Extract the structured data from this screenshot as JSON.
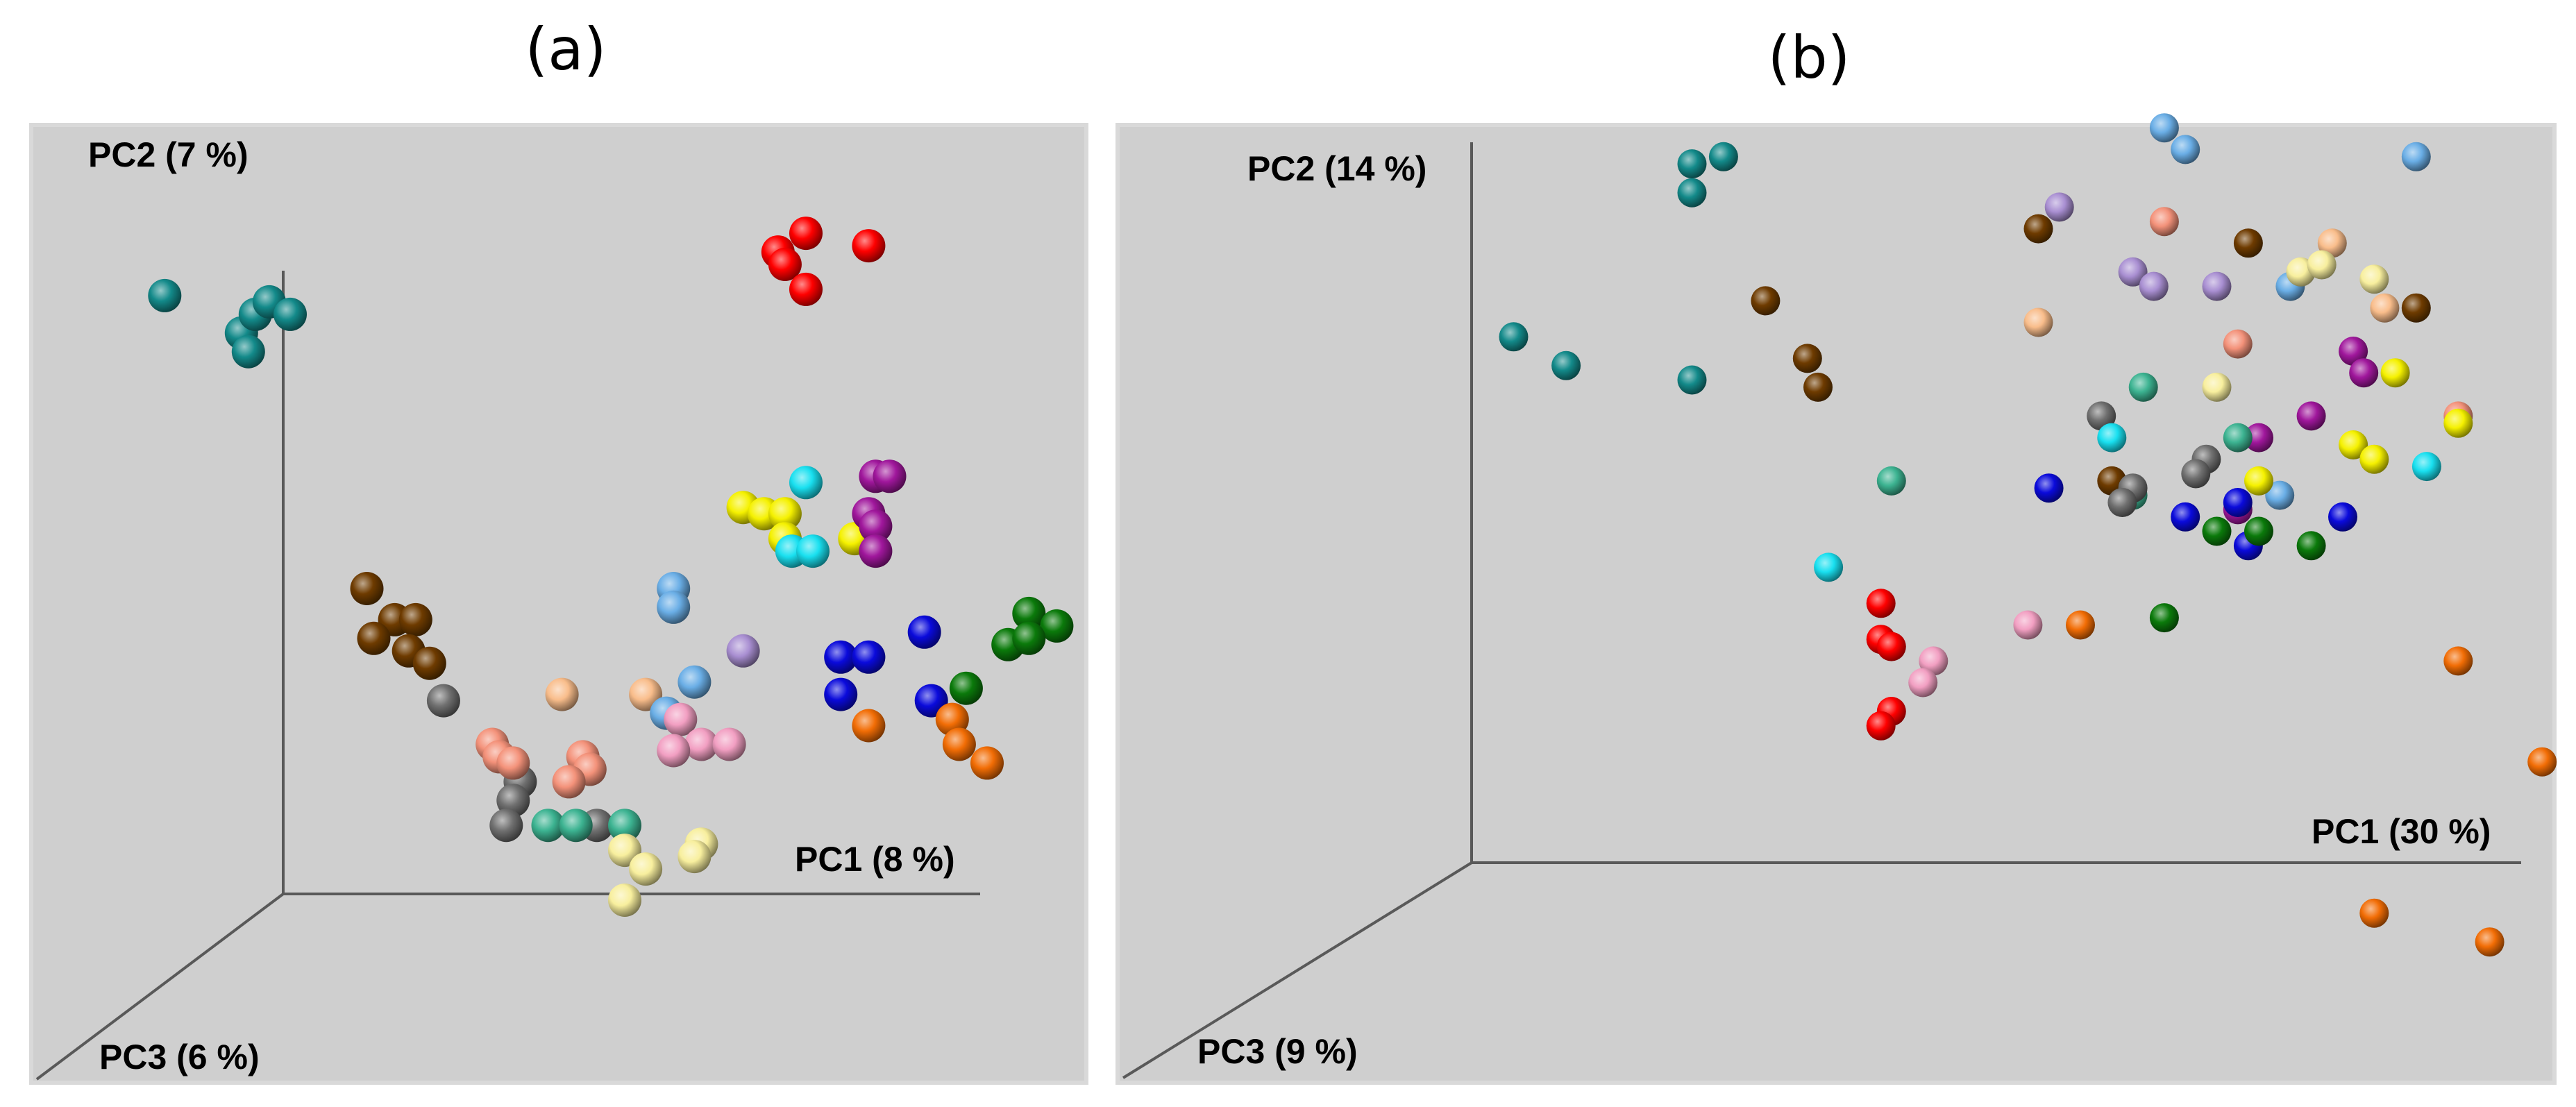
{
  "chart_data": [
    {
      "type": "scatter",
      "panel_label": "(a)",
      "view": "3d",
      "axes": {
        "x": "PC1 (8 %)",
        "y": "PC2 (7 %)",
        "z": "PC3 (6 %)"
      },
      "grid": false,
      "note": "3D PCoA scatter; points given as projected coordinates on the printed axes (0-1 scale, origin at axes corner)",
      "points": [
        {
          "c": "teal",
          "x": -0.17,
          "y": 0.96
        },
        {
          "c": "teal",
          "x": -0.06,
          "y": 0.9
        },
        {
          "c": "teal",
          "x": -0.04,
          "y": 0.93
        },
        {
          "c": "teal",
          "x": -0.02,
          "y": 0.95
        },
        {
          "c": "teal",
          "x": 0.01,
          "y": 0.93
        },
        {
          "c": "teal",
          "x": -0.05,
          "y": 0.87
        },
        {
          "c": "red",
          "x": 0.71,
          "y": 1.03
        },
        {
          "c": "red",
          "x": 0.75,
          "y": 1.06
        },
        {
          "c": "red",
          "x": 0.84,
          "y": 1.04
        },
        {
          "c": "red",
          "x": 0.72,
          "y": 1.01
        },
        {
          "c": "red",
          "x": 0.75,
          "y": 0.97
        },
        {
          "c": "brown",
          "x": 0.12,
          "y": 0.49
        },
        {
          "c": "brown",
          "x": 0.16,
          "y": 0.44
        },
        {
          "c": "brown",
          "x": 0.19,
          "y": 0.44
        },
        {
          "c": "brown",
          "x": 0.13,
          "y": 0.41
        },
        {
          "c": "brown",
          "x": 0.18,
          "y": 0.39
        },
        {
          "c": "brown",
          "x": 0.21,
          "y": 0.37
        },
        {
          "c": "gray",
          "x": 0.23,
          "y": 0.31
        },
        {
          "c": "gray",
          "x": 0.34,
          "y": 0.18
        },
        {
          "c": "gray",
          "x": 0.33,
          "y": 0.15
        },
        {
          "c": "gray",
          "x": 0.32,
          "y": 0.11
        },
        {
          "c": "gray",
          "x": 0.45,
          "y": 0.11
        },
        {
          "c": "salmon",
          "x": 0.3,
          "y": 0.24
        },
        {
          "c": "salmon",
          "x": 0.31,
          "y": 0.22
        },
        {
          "c": "salmon",
          "x": 0.33,
          "y": 0.21
        },
        {
          "c": "salmon",
          "x": 0.43,
          "y": 0.22
        },
        {
          "c": "salmon",
          "x": 0.44,
          "y": 0.2
        },
        {
          "c": "salmon",
          "x": 0.41,
          "y": 0.18
        },
        {
          "c": "peach",
          "x": 0.4,
          "y": 0.32
        },
        {
          "c": "peach",
          "x": 0.52,
          "y": 0.32
        },
        {
          "c": "seagreen",
          "x": 0.38,
          "y": 0.11
        },
        {
          "c": "seagreen",
          "x": 0.42,
          "y": 0.11
        },
        {
          "c": "seagreen",
          "x": 0.49,
          "y": 0.11
        },
        {
          "c": "lightyellow",
          "x": 0.49,
          "y": 0.07
        },
        {
          "c": "lightyellow",
          "x": 0.52,
          "y": 0.04
        },
        {
          "c": "lightyellow",
          "x": 0.6,
          "y": 0.08
        },
        {
          "c": "lightyellow",
          "x": 0.59,
          "y": 0.06
        },
        {
          "c": "lightyellow",
          "x": 0.49,
          "y": -0.01
        },
        {
          "c": "skyblue",
          "x": 0.56,
          "y": 0.49
        },
        {
          "c": "skyblue",
          "x": 0.56,
          "y": 0.46
        },
        {
          "c": "skyblue",
          "x": 0.59,
          "y": 0.34
        },
        {
          "c": "skyblue",
          "x": 0.55,
          "y": 0.29
        },
        {
          "c": "pink",
          "x": 0.57,
          "y": 0.28
        },
        {
          "c": "pink",
          "x": 0.6,
          "y": 0.24
        },
        {
          "c": "pink",
          "x": 0.64,
          "y": 0.24
        },
        {
          "c": "pink",
          "x": 0.56,
          "y": 0.23
        },
        {
          "c": "lavender",
          "x": 0.66,
          "y": 0.39
        },
        {
          "c": "yellow",
          "x": 0.66,
          "y": 0.62
        },
        {
          "c": "yellow",
          "x": 0.69,
          "y": 0.61
        },
        {
          "c": "yellow",
          "x": 0.72,
          "y": 0.61
        },
        {
          "c": "yellow",
          "x": 0.72,
          "y": 0.57
        },
        {
          "c": "yellow",
          "x": 0.82,
          "y": 0.57
        },
        {
          "c": "cyan",
          "x": 0.75,
          "y": 0.66
        },
        {
          "c": "cyan",
          "x": 0.73,
          "y": 0.55
        },
        {
          "c": "cyan",
          "x": 0.76,
          "y": 0.55
        },
        {
          "c": "purple",
          "x": 0.85,
          "y": 0.67
        },
        {
          "c": "purple",
          "x": 0.87,
          "y": 0.67
        },
        {
          "c": "purple",
          "x": 0.84,
          "y": 0.61
        },
        {
          "c": "purple",
          "x": 0.85,
          "y": 0.59
        },
        {
          "c": "purple",
          "x": 0.85,
          "y": 0.55
        },
        {
          "c": "blue",
          "x": 0.8,
          "y": 0.38
        },
        {
          "c": "blue",
          "x": 0.84,
          "y": 0.38
        },
        {
          "c": "blue",
          "x": 0.92,
          "y": 0.42
        },
        {
          "c": "blue",
          "x": 0.8,
          "y": 0.32
        },
        {
          "c": "blue",
          "x": 0.93,
          "y": 0.31
        },
        {
          "c": "orange",
          "x": 0.84,
          "y": 0.27
        },
        {
          "c": "orange",
          "x": 0.96,
          "y": 0.28
        },
        {
          "c": "orange",
          "x": 0.97,
          "y": 0.24
        },
        {
          "c": "orange",
          "x": 1.01,
          "y": 0.21
        },
        {
          "c": "green",
          "x": 1.07,
          "y": 0.45
        },
        {
          "c": "green",
          "x": 1.11,
          "y": 0.43
        },
        {
          "c": "green",
          "x": 1.04,
          "y": 0.4
        },
        {
          "c": "green",
          "x": 1.07,
          "y": 0.41
        },
        {
          "c": "green",
          "x": 0.98,
          "y": 0.33
        }
      ]
    },
    {
      "type": "scatter",
      "panel_label": "(b)",
      "view": "3d",
      "axes": {
        "x": "PC1 (30 %)",
        "y": "PC2 (14 %)",
        "z": "PC3 (9 %)"
      },
      "grid": false,
      "note": "3D PCoA scatter; points given as projected coordinates on the printed axes (0-1 scale, origin at axes corner)",
      "points": [
        {
          "c": "teal",
          "x": 0.21,
          "y": 0.97
        },
        {
          "c": "teal",
          "x": 0.24,
          "y": 0.98
        },
        {
          "c": "teal",
          "x": 0.21,
          "y": 0.93
        },
        {
          "c": "teal",
          "x": 0.04,
          "y": 0.73
        },
        {
          "c": "teal",
          "x": 0.09,
          "y": 0.69
        },
        {
          "c": "teal",
          "x": 0.21,
          "y": 0.67
        },
        {
          "c": "brown",
          "x": 0.28,
          "y": 0.78
        },
        {
          "c": "brown",
          "x": 0.32,
          "y": 0.7
        },
        {
          "c": "brown",
          "x": 0.33,
          "y": 0.66
        },
        {
          "c": "brown",
          "x": 0.54,
          "y": 0.88
        },
        {
          "c": "brown",
          "x": 0.74,
          "y": 0.86
        },
        {
          "c": "brown",
          "x": 0.61,
          "y": 0.53
        },
        {
          "c": "brown",
          "x": 0.9,
          "y": 0.77
        },
        {
          "c": "skyblue",
          "x": 0.66,
          "y": 1.02
        },
        {
          "c": "skyblue",
          "x": 0.68,
          "y": 0.99
        },
        {
          "c": "skyblue",
          "x": 0.9,
          "y": 0.98
        },
        {
          "c": "skyblue",
          "x": 0.78,
          "y": 0.8
        },
        {
          "c": "skyblue",
          "x": 0.77,
          "y": 0.51
        },
        {
          "c": "lavender",
          "x": 0.56,
          "y": 0.91
        },
        {
          "c": "lavender",
          "x": 0.63,
          "y": 0.82
        },
        {
          "c": "lavender",
          "x": 0.65,
          "y": 0.8
        },
        {
          "c": "lavender",
          "x": 0.71,
          "y": 0.8
        },
        {
          "c": "salmon",
          "x": 0.66,
          "y": 0.89
        },
        {
          "c": "salmon",
          "x": 0.73,
          "y": 0.72
        },
        {
          "c": "salmon",
          "x": 0.94,
          "y": 0.62
        },
        {
          "c": "peach",
          "x": 0.54,
          "y": 0.75
        },
        {
          "c": "peach",
          "x": 0.82,
          "y": 0.86
        },
        {
          "c": "peach",
          "x": 0.87,
          "y": 0.77
        },
        {
          "c": "lightyellow",
          "x": 0.79,
          "y": 0.82
        },
        {
          "c": "lightyellow",
          "x": 0.81,
          "y": 0.83
        },
        {
          "c": "lightyellow",
          "x": 0.86,
          "y": 0.81
        },
        {
          "c": "lightyellow",
          "x": 0.71,
          "y": 0.66
        },
        {
          "c": "purple",
          "x": 0.84,
          "y": 0.71
        },
        {
          "c": "purple",
          "x": 0.85,
          "y": 0.68
        },
        {
          "c": "purple",
          "x": 0.8,
          "y": 0.62
        },
        {
          "c": "purple",
          "x": 0.75,
          "y": 0.59
        },
        {
          "c": "purple",
          "x": 0.73,
          "y": 0.49
        },
        {
          "c": "yellow",
          "x": 0.88,
          "y": 0.68
        },
        {
          "c": "yellow",
          "x": 0.94,
          "y": 0.61
        },
        {
          "c": "yellow",
          "x": 0.84,
          "y": 0.58
        },
        {
          "c": "yellow",
          "x": 0.86,
          "y": 0.56
        },
        {
          "c": "yellow",
          "x": 0.75,
          "y": 0.53
        },
        {
          "c": "seagreen",
          "x": 0.64,
          "y": 0.66
        },
        {
          "c": "seagreen",
          "x": 0.73,
          "y": 0.59
        },
        {
          "c": "seagreen",
          "x": 0.4,
          "y": 0.53
        },
        {
          "c": "seagreen",
          "x": 0.63,
          "y": 0.51
        },
        {
          "c": "gray",
          "x": 0.6,
          "y": 0.62
        },
        {
          "c": "gray",
          "x": 0.7,
          "y": 0.56
        },
        {
          "c": "gray",
          "x": 0.69,
          "y": 0.54
        },
        {
          "c": "gray",
          "x": 0.63,
          "y": 0.52
        },
        {
          "c": "gray",
          "x": 0.62,
          "y": 0.5
        },
        {
          "c": "cyan",
          "x": 0.61,
          "y": 0.59
        },
        {
          "c": "cyan",
          "x": 0.91,
          "y": 0.55
        },
        {
          "c": "cyan",
          "x": 0.34,
          "y": 0.41
        },
        {
          "c": "blue",
          "x": 0.55,
          "y": 0.52
        },
        {
          "c": "blue",
          "x": 0.68,
          "y": 0.48
        },
        {
          "c": "blue",
          "x": 0.73,
          "y": 0.5
        },
        {
          "c": "blue",
          "x": 0.74,
          "y": 0.44
        },
        {
          "c": "blue",
          "x": 0.83,
          "y": 0.48
        },
        {
          "c": "green",
          "x": 0.71,
          "y": 0.46
        },
        {
          "c": "green",
          "x": 0.75,
          "y": 0.46
        },
        {
          "c": "green",
          "x": 0.8,
          "y": 0.44
        },
        {
          "c": "green",
          "x": 0.66,
          "y": 0.34
        },
        {
          "c": "red",
          "x": 0.39,
          "y": 0.36
        },
        {
          "c": "red",
          "x": 0.39,
          "y": 0.31
        },
        {
          "c": "red",
          "x": 0.4,
          "y": 0.3
        },
        {
          "c": "red",
          "x": 0.4,
          "y": 0.21
        },
        {
          "c": "red",
          "x": 0.39,
          "y": 0.19
        },
        {
          "c": "pink",
          "x": 0.44,
          "y": 0.28
        },
        {
          "c": "pink",
          "x": 0.43,
          "y": 0.25
        },
        {
          "c": "pink",
          "x": 0.53,
          "y": 0.33
        },
        {
          "c": "orange",
          "x": 0.58,
          "y": 0.33
        },
        {
          "c": "orange",
          "x": 0.94,
          "y": 0.28
        },
        {
          "c": "orange",
          "x": 1.02,
          "y": 0.14
        },
        {
          "c": "orange",
          "x": 0.86,
          "y": -0.07
        },
        {
          "c": "orange",
          "x": 0.97,
          "y": -0.11
        }
      ]
    }
  ],
  "palette": {
    "teal": "#138a8a",
    "red": "#ff0000",
    "brown": "#6e3b00",
    "gray": "#707070",
    "salmon": "#f4927a",
    "peach": "#f9bd8b",
    "seagreen": "#3cb391",
    "lightyellow": "#f8ef9e",
    "skyblue": "#6aaee6",
    "pink": "#f29fc2",
    "lavender": "#a98fd2",
    "yellow": "#f5f100",
    "cyan": "#19e0f0",
    "purple": "#a0179c",
    "blue": "#0a0adb",
    "orange": "#f26d05",
    "green": "#0b7a0b"
  }
}
